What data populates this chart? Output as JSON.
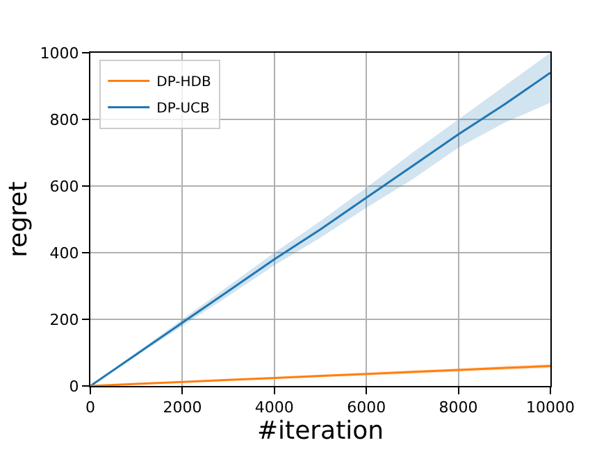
{
  "chart_data": {
    "type": "line",
    "xlabel": "#iteration",
    "ylabel": "regret",
    "x": [
      0,
      1000,
      2000,
      3000,
      4000,
      5000,
      6000,
      7000,
      8000,
      9000,
      10000
    ],
    "series": [
      {
        "name": "DP-UCB",
        "color": "#1f77b4",
        "values": [
          0,
          95,
          190,
          285,
          380,
          470,
          565,
          660,
          755,
          845,
          940
        ],
        "lower": [
          0,
          90,
          180,
          270,
          362,
          445,
          535,
          620,
          715,
          790,
          850
        ],
        "upper": [
          0,
          100,
          200,
          300,
          400,
          495,
          595,
          700,
          800,
          900,
          1000
        ]
      },
      {
        "name": "DP-HDB",
        "color": "#ff7f0e",
        "values": [
          0,
          6,
          12,
          18,
          24,
          30,
          36,
          42,
          48,
          54,
          60
        ],
        "lower": [
          0,
          5,
          10,
          15,
          21,
          26,
          32,
          37,
          43,
          48,
          54
        ],
        "upper": [
          0,
          7,
          14,
          21,
          27,
          34,
          40,
          47,
          53,
          60,
          66
        ]
      }
    ],
    "xlim": [
      0,
      10000
    ],
    "xticks": [
      0,
      2000,
      4000,
      6000,
      8000,
      10000
    ],
    "ylim": [
      0,
      1000
    ],
    "yticks": [
      0,
      200,
      400,
      600,
      800,
      1000
    ],
    "grid": true,
    "legend": "top left",
    "marker": "none",
    "line_style": "solid"
  }
}
